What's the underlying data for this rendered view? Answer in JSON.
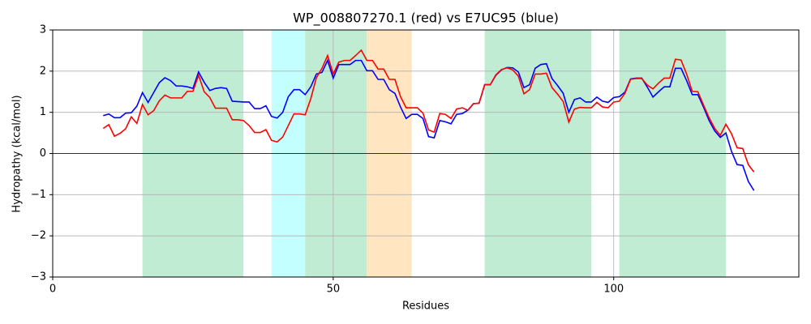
{
  "chart_data": {
    "type": "line",
    "title": "WP_008807270.1 (red) vs E7UC95 (blue)",
    "x_label": "Residues",
    "y_label": "Hydropathy (kcal/mol)",
    "x": [
      9,
      10,
      11,
      12,
      13,
      14,
      15,
      16,
      17,
      18,
      19,
      20,
      21,
      22,
      23,
      24,
      25,
      26,
      27,
      28,
      29,
      30,
      31,
      32,
      33,
      34,
      35,
      36,
      37,
      38,
      39,
      40,
      41,
      42,
      43,
      44,
      45,
      46,
      47,
      48,
      49,
      50,
      51,
      52,
      53,
      54,
      55,
      56,
      57,
      58,
      59,
      60,
      61,
      62,
      63,
      64,
      65,
      66,
      67,
      68,
      69,
      70,
      71,
      72,
      73,
      74,
      75,
      76,
      77,
      78,
      79,
      80,
      81,
      82,
      83,
      84,
      85,
      86,
      87,
      88,
      89,
      90,
      91,
      92,
      93,
      94,
      95,
      96,
      97,
      98,
      99,
      100,
      101,
      102,
      103,
      104,
      105,
      106,
      107,
      108,
      109,
      110,
      111,
      112,
      113,
      114,
      115,
      116,
      117,
      118,
      119,
      120,
      121,
      122,
      123,
      124,
      125
    ],
    "series": [
      {
        "name": "E7UC95",
        "color": "#0000ff",
        "values": [
          0.92,
          0.96,
          0.87,
          0.87,
          0.98,
          0.99,
          1.15,
          1.48,
          1.24,
          1.48,
          1.72,
          1.84,
          1.77,
          1.64,
          1.64,
          1.62,
          1.58,
          1.98,
          1.73,
          1.53,
          1.58,
          1.6,
          1.58,
          1.27,
          1.26,
          1.25,
          1.25,
          1.09,
          1.09,
          1.16,
          0.9,
          0.86,
          1.0,
          1.38,
          1.55,
          1.55,
          1.43,
          1.62,
          1.93,
          1.97,
          2.26,
          1.83,
          2.16,
          2.16,
          2.16,
          2.26,
          2.26,
          2.01,
          2.01,
          1.8,
          1.8,
          1.55,
          1.46,
          1.13,
          0.85,
          0.95,
          0.95,
          0.85,
          0.41,
          0.38,
          0.8,
          0.77,
          0.72,
          0.95,
          0.97,
          1.05,
          1.21,
          1.22,
          1.67,
          1.67,
          1.9,
          2.03,
          2.09,
          2.08,
          1.98,
          1.6,
          1.67,
          2.07,
          2.16,
          2.18,
          1.82,
          1.65,
          1.46,
          1.0,
          1.31,
          1.35,
          1.25,
          1.25,
          1.37,
          1.27,
          1.24,
          1.36,
          1.38,
          1.49,
          1.81,
          1.83,
          1.83,
          1.61,
          1.37,
          1.5,
          1.62,
          1.62,
          2.07,
          2.07,
          1.77,
          1.43,
          1.43,
          1.13,
          0.8,
          0.55,
          0.39,
          0.5,
          0.05,
          -0.27,
          -0.29,
          -0.68,
          -0.9
        ]
      },
      {
        "name": "WP_008807270.1",
        "color": "#ff0000",
        "values": [
          0.61,
          0.7,
          0.42,
          0.49,
          0.6,
          0.89,
          0.73,
          1.19,
          0.94,
          1.04,
          1.28,
          1.42,
          1.35,
          1.35,
          1.35,
          1.51,
          1.51,
          1.9,
          1.5,
          1.36,
          1.1,
          1.1,
          1.1,
          0.82,
          0.82,
          0.8,
          0.68,
          0.51,
          0.51,
          0.58,
          0.32,
          0.28,
          0.4,
          0.68,
          0.96,
          0.96,
          0.94,
          1.33,
          1.84,
          2.07,
          2.38,
          1.93,
          2.22,
          2.26,
          2.26,
          2.38,
          2.51,
          2.26,
          2.26,
          2.05,
          2.05,
          1.8,
          1.8,
          1.38,
          1.11,
          1.11,
          1.11,
          0.98,
          0.57,
          0.52,
          0.97,
          0.95,
          0.85,
          1.08,
          1.11,
          1.05,
          1.21,
          1.22,
          1.67,
          1.67,
          1.91,
          2.04,
          2.08,
          2.03,
          1.88,
          1.45,
          1.55,
          1.93,
          1.93,
          1.95,
          1.6,
          1.44,
          1.26,
          0.76,
          1.08,
          1.12,
          1.11,
          1.11,
          1.24,
          1.13,
          1.11,
          1.25,
          1.27,
          1.46,
          1.8,
          1.82,
          1.82,
          1.66,
          1.57,
          1.71,
          1.83,
          1.83,
          2.29,
          2.27,
          1.93,
          1.51,
          1.5,
          1.18,
          0.87,
          0.61,
          0.44,
          0.71,
          0.48,
          0.14,
          0.12,
          -0.27,
          -0.45
        ]
      }
    ],
    "regions": [
      {
        "start": 16,
        "end": 34,
        "color": "#c0ecd4"
      },
      {
        "start": 39,
        "end": 45,
        "color": "#c4ffff"
      },
      {
        "start": 45,
        "end": 56,
        "color": "#c0ecd4"
      },
      {
        "start": 56,
        "end": 64,
        "color": "#ffe6c0"
      },
      {
        "start": 77,
        "end": 96,
        "color": "#c0ecd4"
      },
      {
        "start": 101,
        "end": 120,
        "color": "#c0ecd4"
      }
    ],
    "reference_line": 0,
    "xlim": [
      0,
      133
    ],
    "xticks": [
      0,
      50,
      100
    ],
    "ylim": [
      -3,
      3
    ],
    "yticks": [
      {
        "value": -3,
        "label": "−3"
      },
      {
        "value": -2,
        "label": "−2"
      },
      {
        "value": -1,
        "label": "−1"
      },
      0,
      1,
      2,
      3
    ],
    "grid": true
  }
}
